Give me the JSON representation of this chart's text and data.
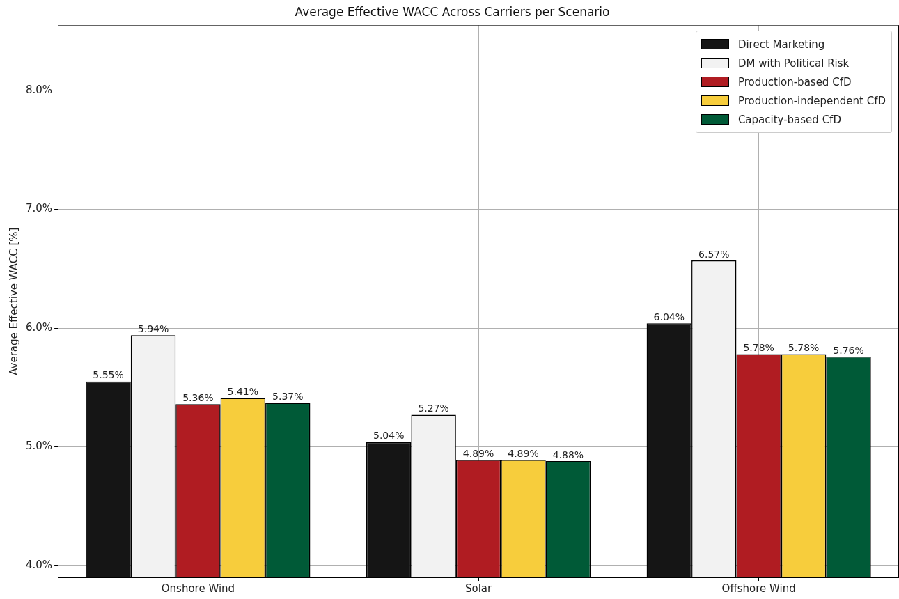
{
  "chart_data": {
    "type": "bar",
    "title": "Average Effective WACC Across Carriers per Scenario",
    "ylabel": "Average Effective WACC [%]",
    "categories": [
      "Onshore Wind",
      "Solar",
      "Offshore Wind"
    ],
    "series": [
      {
        "name": "Direct Marketing",
        "color": "#151515",
        "values": [
          5.55,
          5.04,
          6.04
        ],
        "value_labels": [
          "5.55%",
          "5.04%",
          "6.04%"
        ]
      },
      {
        "name": "DM with Political Risk",
        "color": "#f2f2f2",
        "values": [
          5.94,
          5.27,
          6.57
        ],
        "value_labels": [
          "5.94%",
          "5.27%",
          "6.57%"
        ]
      },
      {
        "name": "Production-based CfD",
        "color": "#b01c22",
        "values": [
          5.36,
          4.89,
          5.78
        ],
        "value_labels": [
          "5.36%",
          "4.89%",
          "5.78%"
        ]
      },
      {
        "name": "Production-independent CfD",
        "color": "#f7cd3c",
        "values": [
          5.41,
          4.89,
          5.78
        ],
        "value_labels": [
          "5.41%",
          "4.89%",
          "5.78%"
        ]
      },
      {
        "name": "Capacity-based CfD",
        "color": "#005a37",
        "values": [
          5.37,
          4.88,
          5.76
        ],
        "value_labels": [
          "5.37%",
          "4.88%",
          "5.76%"
        ]
      }
    ],
    "ylim": [
      3.9,
      8.55
    ],
    "yticks": [
      {
        "value": 4,
        "label": "4.0%"
      },
      {
        "value": 5,
        "label": "5.0%"
      },
      {
        "value": 6,
        "label": "6.0%"
      },
      {
        "value": 7,
        "label": "7.0%"
      },
      {
        "value": 8,
        "label": "8.0%"
      }
    ],
    "grid": true,
    "legend": "top right"
  }
}
